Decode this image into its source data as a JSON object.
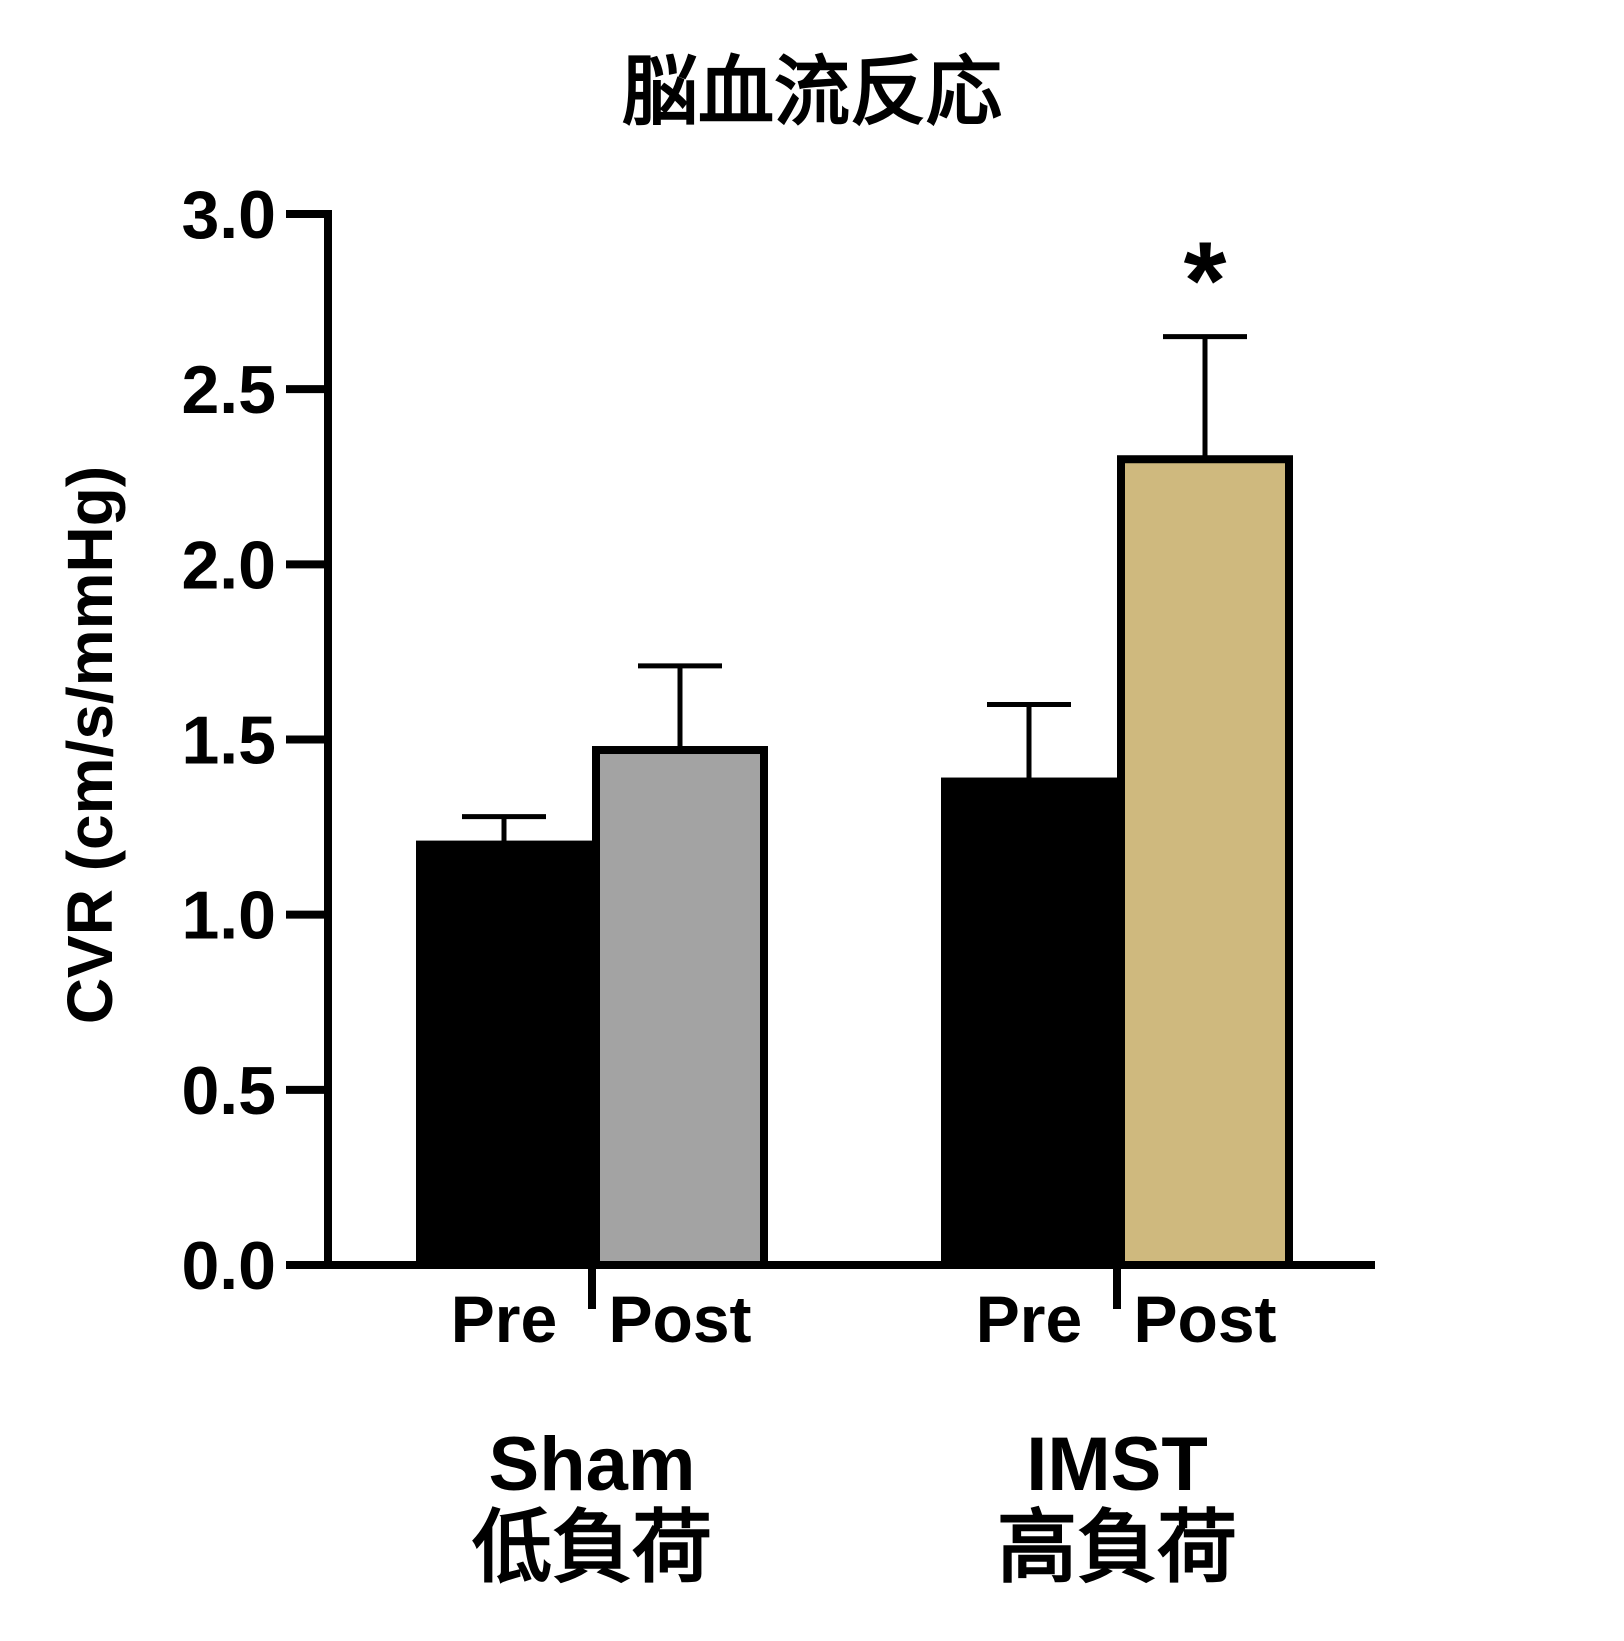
{
  "chart_data": {
    "type": "bar",
    "title": "脳血流反応",
    "ylabel": "CVR (cm/s/mmHg)",
    "ylim": [
      0,
      3.0
    ],
    "yticks": [
      "0.0",
      "0.5",
      "1.0",
      "1.5",
      "2.0",
      "2.5",
      "3.0"
    ],
    "grid": false,
    "groups": [
      {
        "name": "Sham",
        "subname": "低負荷",
        "bars": [
          {
            "label": "Pre",
            "value": 1.2,
            "error": 0.08,
            "color": "#000000"
          },
          {
            "label": "Post",
            "value": 1.47,
            "error": 0.24,
            "color": "#a3a3a3"
          }
        ]
      },
      {
        "name": "IMST",
        "subname": "高負荷",
        "bars": [
          {
            "label": "Pre",
            "value": 1.38,
            "error": 0.22,
            "color": "#000000"
          },
          {
            "label": "Post",
            "value": 2.3,
            "error": 0.35,
            "color": "#cfb97e",
            "significance": "*"
          }
        ]
      }
    ]
  }
}
